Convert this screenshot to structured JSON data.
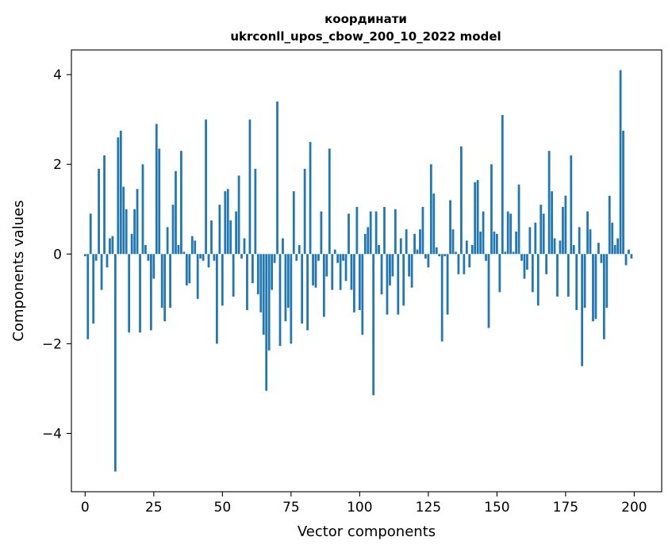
{
  "chart_data": {
    "type": "bar",
    "title": "координати\nukrconll_upos_cbow_200_10_2022 model",
    "xlabel": "Vector components",
    "ylabel": "Components values",
    "xlim": [
      -5,
      210
    ],
    "ylim": [
      -5.3,
      4.55
    ],
    "xticks": [
      0,
      25,
      50,
      75,
      100,
      125,
      150,
      175,
      200
    ],
    "yticks": [
      -4,
      -2,
      0,
      2,
      4
    ],
    "grid": false,
    "bar_color": "#1f77b4",
    "x": [
      0,
      1,
      2,
      3,
      4,
      5,
      6,
      7,
      8,
      9,
      10,
      11,
      12,
      13,
      14,
      15,
      16,
      17,
      18,
      19,
      20,
      21,
      22,
      23,
      24,
      25,
      26,
      27,
      28,
      29,
      30,
      31,
      32,
      33,
      34,
      35,
      36,
      37,
      38,
      39,
      40,
      41,
      42,
      43,
      44,
      45,
      46,
      47,
      48,
      49,
      50,
      51,
      52,
      53,
      54,
      55,
      56,
      57,
      58,
      59,
      60,
      61,
      62,
      63,
      64,
      65,
      66,
      67,
      68,
      69,
      70,
      71,
      72,
      73,
      74,
      75,
      76,
      77,
      78,
      79,
      80,
      81,
      82,
      83,
      84,
      85,
      86,
      87,
      88,
      89,
      90,
      91,
      92,
      93,
      94,
      95,
      96,
      97,
      98,
      99,
      100,
      101,
      102,
      103,
      104,
      105,
      106,
      107,
      108,
      109,
      110,
      111,
      112,
      113,
      114,
      115,
      116,
      117,
      118,
      119,
      120,
      121,
      122,
      123,
      124,
      125,
      126,
      127,
      128,
      129,
      130,
      131,
      132,
      133,
      134,
      135,
      136,
      137,
      138,
      139,
      140,
      141,
      142,
      143,
      144,
      145,
      146,
      147,
      148,
      149,
      150,
      151,
      152,
      153,
      154,
      155,
      156,
      157,
      158,
      159,
      160,
      161,
      162,
      163,
      164,
      165,
      166,
      167,
      168,
      169,
      170,
      171,
      172,
      173,
      174,
      175,
      176,
      177,
      178,
      179,
      180,
      181,
      182,
      183,
      184,
      185,
      186,
      187,
      188,
      189,
      190,
      191,
      192,
      193,
      194,
      195,
      196,
      197,
      198,
      199
    ],
    "values": [
      -0.05,
      -1.9,
      0.9,
      -1.55,
      -0.15,
      1.9,
      -0.8,
      2.2,
      -0.3,
      0.35,
      0.4,
      -4.85,
      2.6,
      2.75,
      1.5,
      1.0,
      -1.75,
      0.45,
      1.0,
      1.45,
      -1.75,
      2.0,
      0.2,
      -0.15,
      -1.7,
      -0.55,
      2.9,
      2.35,
      -1.2,
      -1.5,
      0.6,
      -1.2,
      1.1,
      1.85,
      0.2,
      2.3,
      0.05,
      -0.7,
      -0.65,
      0.4,
      0.3,
      -1.0,
      -0.1,
      -0.15,
      3.0,
      -0.3,
      0.75,
      -0.15,
      -2.0,
      1.1,
      -1.15,
      1.4,
      1.45,
      0.75,
      -0.95,
      0.95,
      1.75,
      -0.1,
      0.35,
      -1.25,
      3.0,
      -0.65,
      1.9,
      -0.9,
      -1.3,
      -1.8,
      -3.05,
      -2.15,
      -0.8,
      -0.2,
      3.4,
      -2.05,
      0.35,
      -1.5,
      -1.2,
      -2.0,
      1.4,
      -0.15,
      0.2,
      -1.55,
      1.9,
      -1.7,
      2.5,
      -0.7,
      -0.75,
      -0.15,
      0.95,
      -1.4,
      -0.5,
      2.35,
      -0.8,
      0.1,
      -0.2,
      -0.8,
      -0.15,
      -0.6,
      0.9,
      -0.8,
      -1.3,
      1.05,
      -1.25,
      -1.8,
      0.45,
      0.6,
      0.95,
      -3.15,
      0.95,
      0.2,
      -0.9,
      1.05,
      -1.35,
      -0.7,
      -0.5,
      1.0,
      -1.35,
      0.35,
      -1.15,
      0.55,
      -0.5,
      -0.75,
      0.45,
      0.1,
      0.55,
      1.05,
      -0.1,
      -0.3,
      2.0,
      1.35,
      0.15,
      -0.05,
      -1.95,
      -0.05,
      -1.35,
      1.2,
      0.55,
      0.05,
      -0.45,
      2.4,
      -0.45,
      0.3,
      -0.3,
      0.2,
      1.6,
      1.65,
      0.5,
      0.95,
      -0.15,
      -1.65,
      2.0,
      0.5,
      0.45,
      -0.85,
      3.1,
      0.05,
      0.95,
      0.9,
      0.05,
      0.5,
      1.55,
      -0.15,
      -0.55,
      -0.35,
      0.6,
      -0.85,
      0.7,
      -1.15,
      1.1,
      0.9,
      -0.45,
      2.3,
      1.4,
      0.35,
      -0.95,
      0.3,
      1.05,
      1.3,
      -0.95,
      2.2,
      0.2,
      -1.25,
      0.6,
      -2.5,
      -1.2,
      0.95,
      0.55,
      -1.5,
      -1.45,
      0.25,
      -0.2,
      -1.9,
      -1.2,
      1.3,
      0.7,
      0.2,
      0.35,
      4.1,
      2.75,
      -0.25,
      0.1,
      -0.1
    ]
  }
}
